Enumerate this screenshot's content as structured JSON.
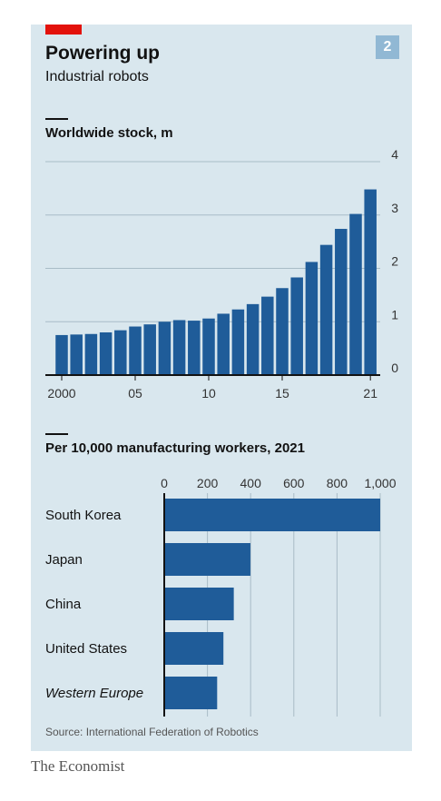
{
  "header": {
    "title": "Powering up",
    "subtitle": "Industrial robots",
    "badge": "2"
  },
  "colors": {
    "bar": "#1f5c99",
    "panel": "#d9e7ee",
    "accent": "#e3120b",
    "badge": "#91b8d4"
  },
  "chart_data": [
    {
      "type": "bar",
      "title": "Worldwide stock, m",
      "x": [
        2000,
        2001,
        2002,
        2003,
        2004,
        2005,
        2006,
        2007,
        2008,
        2009,
        2010,
        2011,
        2012,
        2013,
        2014,
        2015,
        2016,
        2017,
        2018,
        2019,
        2020,
        2021
      ],
      "values": [
        0.75,
        0.76,
        0.77,
        0.8,
        0.84,
        0.91,
        0.95,
        1.0,
        1.03,
        1.02,
        1.06,
        1.15,
        1.23,
        1.33,
        1.47,
        1.63,
        1.83,
        2.12,
        2.44,
        2.74,
        3.02,
        3.48
      ],
      "x_tick_labels": [
        {
          "x": 2000,
          "label": "2000"
        },
        {
          "x": 2005,
          "label": "05"
        },
        {
          "x": 2010,
          "label": "10"
        },
        {
          "x": 2015,
          "label": "15"
        },
        {
          "x": 2021,
          "label": "21"
        }
      ],
      "y_ticks": [
        0,
        1,
        2,
        3,
        4
      ],
      "ylim": [
        0,
        4
      ],
      "grid": true,
      "y_axis_side": "right"
    },
    {
      "type": "bar",
      "orientation": "horizontal",
      "title": "Per 10,000 manufacturing workers, 2021",
      "categories": [
        "South Korea",
        "Japan",
        "China",
        "United States",
        "Western Europe"
      ],
      "category_italic": [
        false,
        false,
        false,
        false,
        true
      ],
      "values": [
        1000,
        399,
        322,
        274,
        245
      ],
      "x_ticks": [
        0,
        200,
        400,
        600,
        800,
        1000
      ],
      "x_tick_labels": [
        "0",
        "200",
        "400",
        "600",
        "800",
        "1,000"
      ],
      "xlim": [
        0,
        1000
      ],
      "grid": true,
      "x_axis_side": "top"
    }
  ],
  "source": "Source: International Federation of Robotics",
  "footer": "The Economist"
}
